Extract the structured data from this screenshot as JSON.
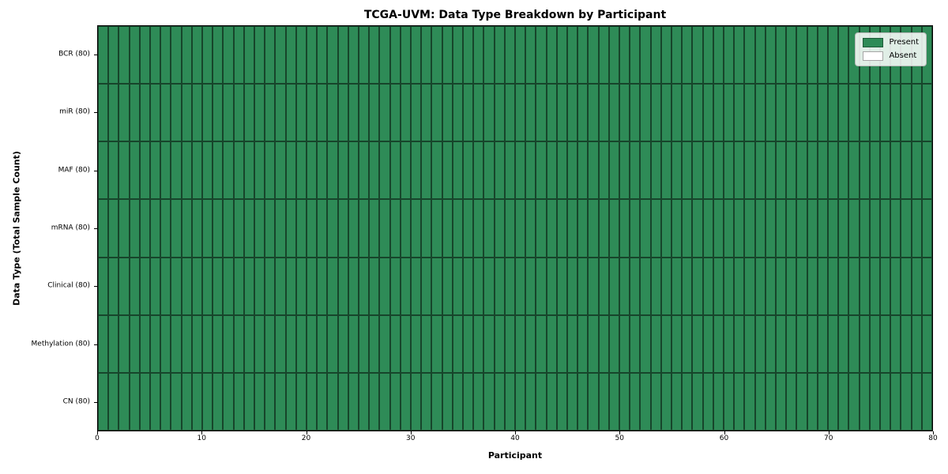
{
  "chart_data": {
    "type": "heatmap",
    "title": "TCGA-UVM: Data Type Breakdown by Participant",
    "xlabel": "Participant",
    "ylabel": "Data Type (Total Sample Count)",
    "n_participants": 80,
    "x_ticks": [
      0,
      10,
      20,
      30,
      40,
      50,
      60,
      70,
      80
    ],
    "xlim": [
      0,
      80
    ],
    "grid": true,
    "rows": [
      {
        "label": "BCR (80)",
        "data_type": "BCR",
        "total_samples": 80,
        "present_count": 80,
        "absent_count": 0
      },
      {
        "label": "miR (80)",
        "data_type": "miR",
        "total_samples": 80,
        "present_count": 80,
        "absent_count": 0
      },
      {
        "label": "MAF (80)",
        "data_type": "MAF",
        "total_samples": 80,
        "present_count": 80,
        "absent_count": 0
      },
      {
        "label": "mRNA (80)",
        "data_type": "mRNA",
        "total_samples": 80,
        "present_count": 80,
        "absent_count": 0
      },
      {
        "label": "Clinical (80)",
        "data_type": "Clinical",
        "total_samples": 80,
        "present_count": 80,
        "absent_count": 0
      },
      {
        "label": "Methylation (80)",
        "data_type": "Methylation",
        "total_samples": 80,
        "present_count": 80,
        "absent_count": 0
      },
      {
        "label": "CN (80)",
        "data_type": "CN",
        "total_samples": 80,
        "present_count": 80,
        "absent_count": 0
      }
    ],
    "legend": {
      "position": "upper right",
      "entries": [
        {
          "label": "Present",
          "color": "#2e8b57"
        },
        {
          "label": "Absent",
          "color": "#ffffff"
        }
      ]
    },
    "colors": {
      "present": "#2e8b57",
      "absent": "#ffffff",
      "cell_edge": "rgba(0,0,0,0.5)"
    }
  }
}
